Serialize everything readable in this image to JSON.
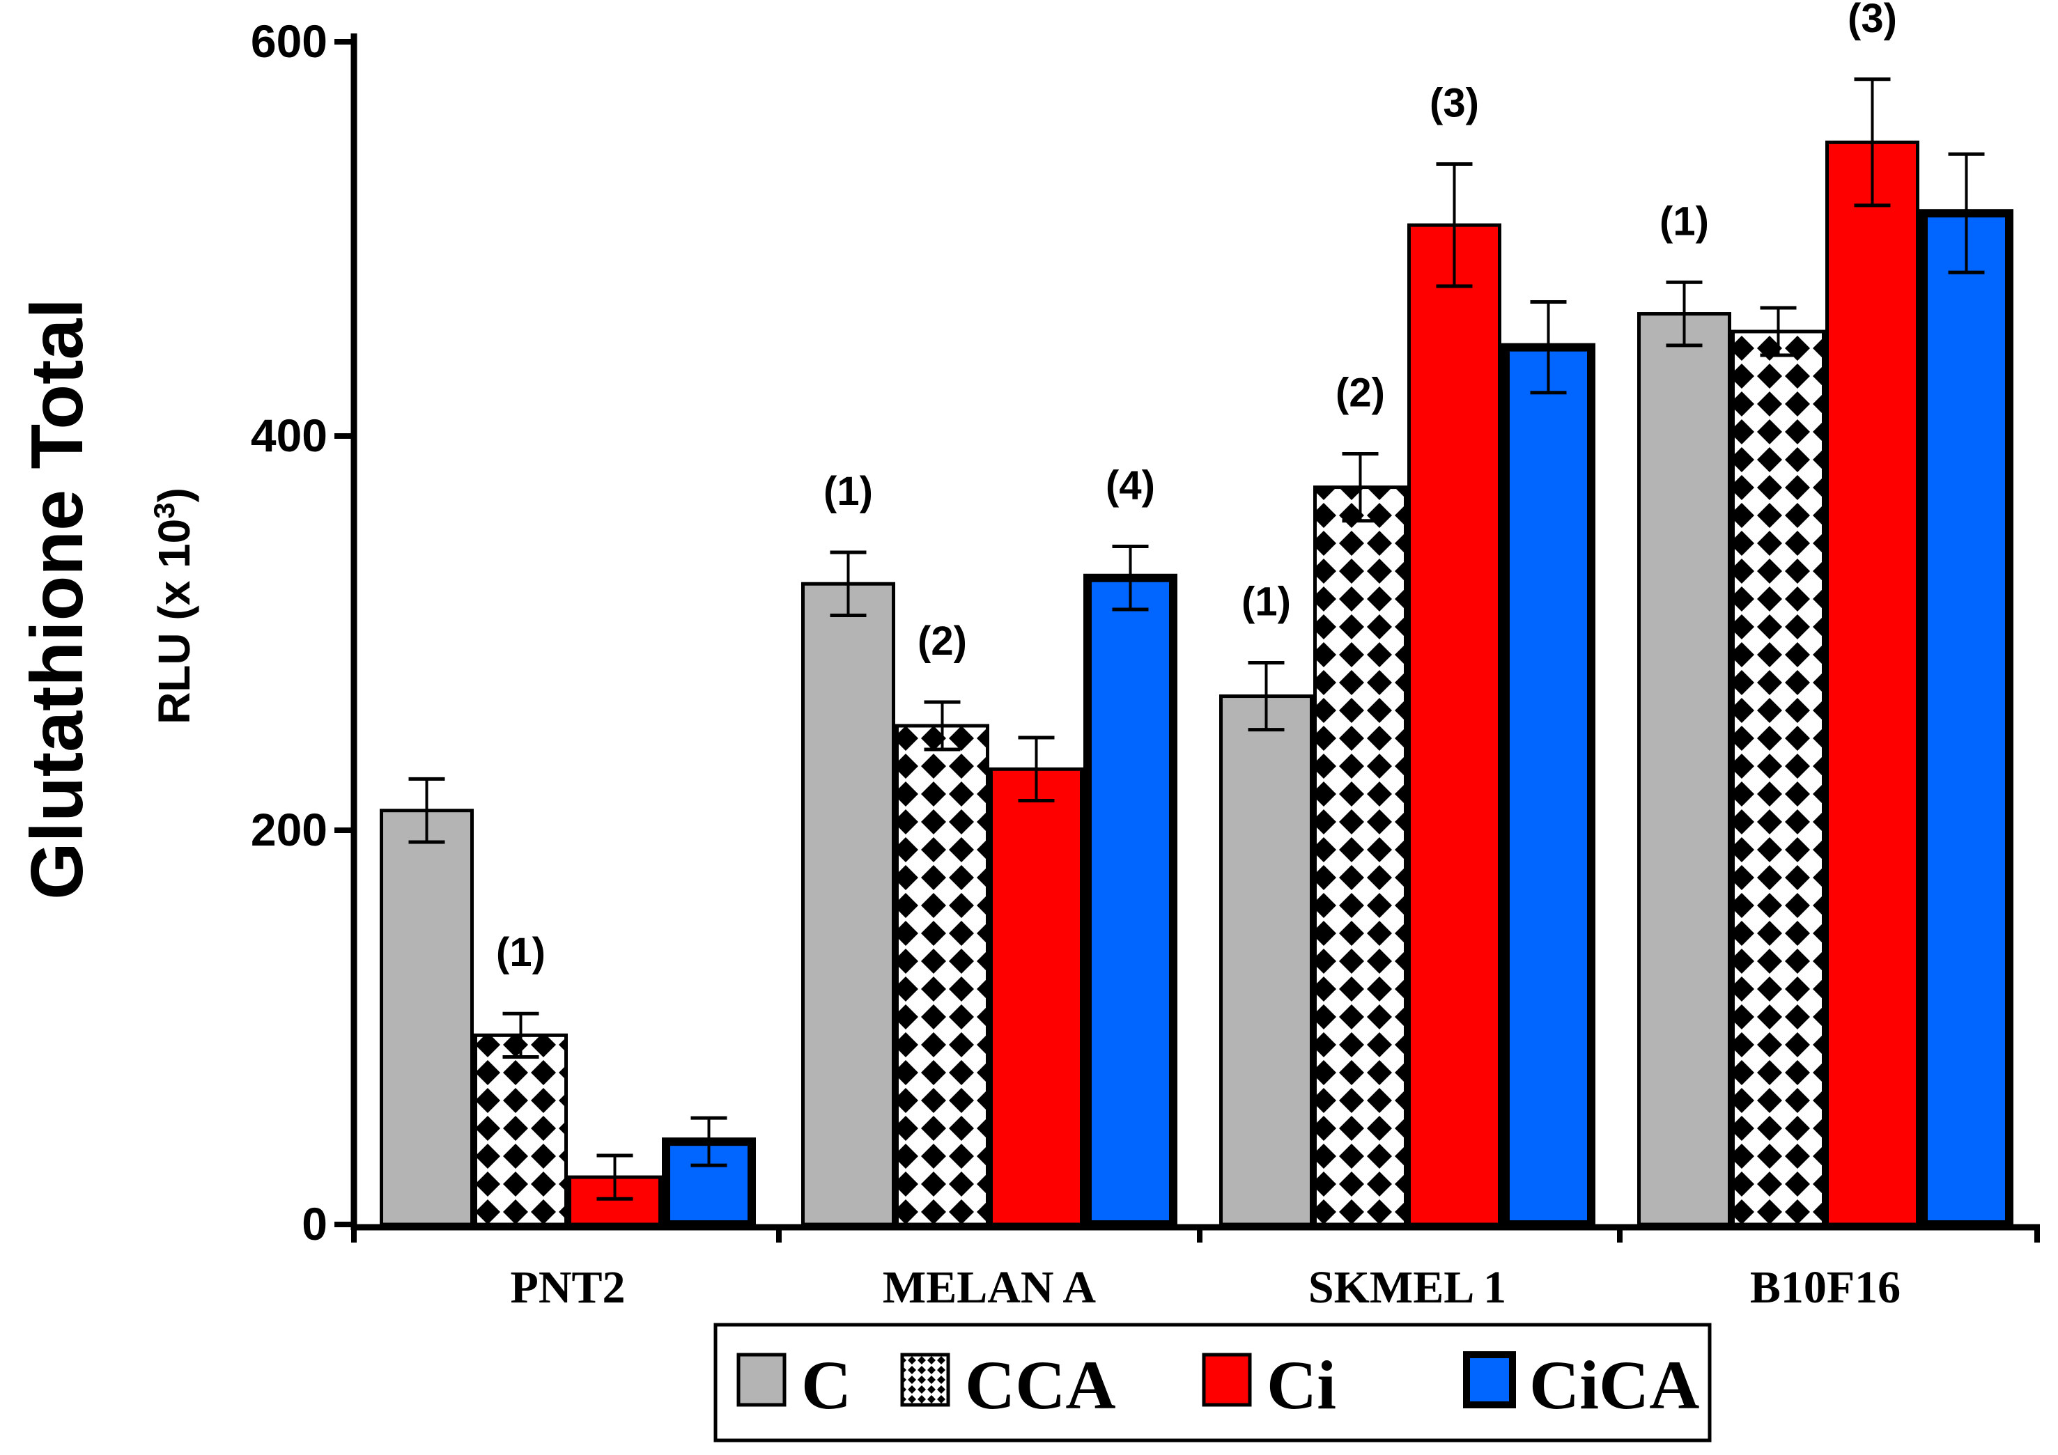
{
  "chart_data": {
    "type": "bar",
    "ylabel": "Glutathione Total",
    "ylabel_sub": "RLU (x 10",
    "ylabel_sup": "3",
    "ylabel_close": ")",
    "ylim": [
      0,
      600
    ],
    "yticks": [
      0,
      200,
      400,
      600
    ],
    "categories": [
      "PNT2",
      "MELAN A",
      "SKMEL 1",
      "B10F16"
    ],
    "series": [
      {
        "name": "C",
        "color": "#b4b4b4",
        "pattern": "none",
        "values": [
          210,
          325,
          268,
          462
        ],
        "errors": [
          16,
          16,
          17,
          16
        ],
        "annotations": [
          "",
          "(1)",
          "(1)",
          "(1)"
        ]
      },
      {
        "name": "CCA",
        "color": "#ffffff",
        "pattern": "diamond",
        "values": [
          96,
          253,
          374,
          453
        ],
        "errors": [
          11,
          12,
          17,
          12
        ],
        "annotations": [
          "(1)",
          "(2)",
          "(2)",
          ""
        ]
      },
      {
        "name": "Ci",
        "color": "#ff0000",
        "pattern": "none",
        "values": [
          24,
          231,
          507,
          549
        ],
        "errors": [
          11,
          16,
          31,
          32
        ],
        "annotations": [
          "",
          "",
          "(3)",
          "(3)"
        ]
      },
      {
        "name": "CiCA",
        "color": "#0066ff",
        "pattern": "none",
        "values": [
          42,
          328,
          445,
          513
        ],
        "errors": [
          12,
          16,
          23,
          30
        ],
        "annotations": [
          "",
          "(4)",
          "",
          ""
        ]
      }
    ],
    "grid": false,
    "legend": "bottom-center"
  }
}
